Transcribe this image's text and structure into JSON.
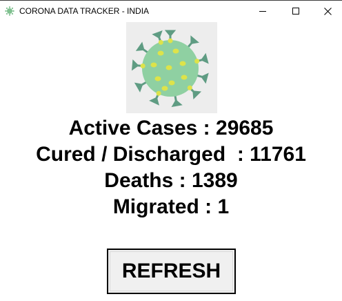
{
  "window": {
    "title": "CORONA DATA TRACKER - INDIA",
    "icon": "virus-icon"
  },
  "controls": {
    "minimize_icon": "minimize-icon",
    "maximize_icon": "maximize-icon",
    "close_icon": "close-icon"
  },
  "image": {
    "icon": "coronavirus-image",
    "colors": {
      "background": "#ededed",
      "body": "#8fd0a2",
      "spikes": "#5f9c83",
      "dots": "#dde34a"
    }
  },
  "stats": {
    "active": "Active Cases : 29685",
    "cured": "Cured / Discharged  : 11761",
    "deaths": "Deaths : 1389",
    "migrated": "Migrated : 1"
  },
  "buttons": {
    "refresh_label": "REFRESH"
  }
}
